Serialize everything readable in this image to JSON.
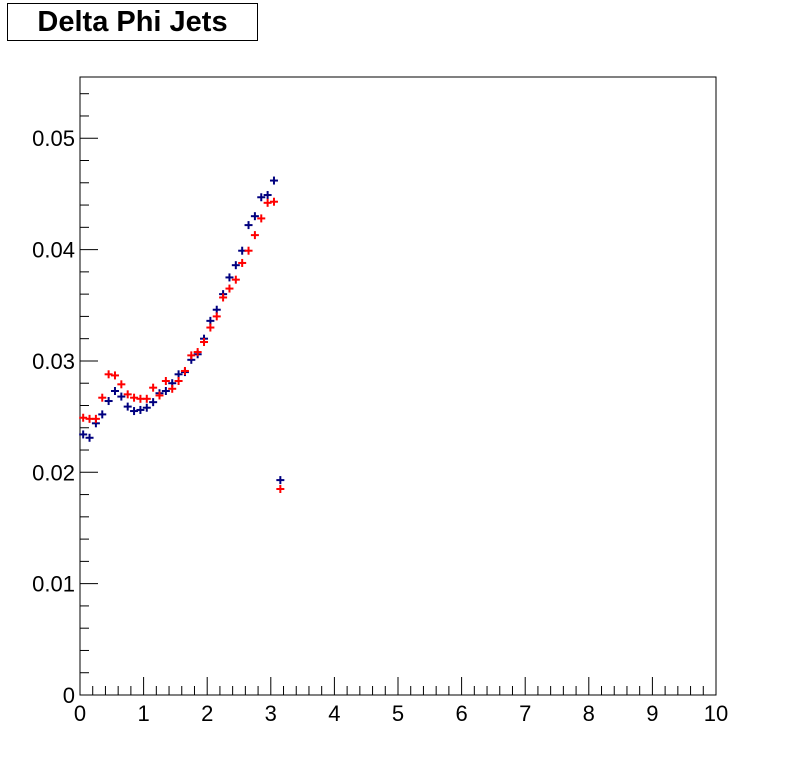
{
  "title": "Delta Phi Jets",
  "chart_data": {
    "type": "scatter",
    "title": "Delta Phi Jets",
    "xlabel": "",
    "ylabel": "",
    "xlim": [
      0,
      10
    ],
    "ylim": [
      0,
      0.0555
    ],
    "x_ticks": [
      0,
      1,
      2,
      3,
      4,
      5,
      6,
      7,
      8,
      9,
      10
    ],
    "y_ticks": [
      0,
      0.01,
      0.02,
      0.03,
      0.04,
      0.05
    ],
    "x_tick_labels": [
      "0",
      "1",
      "2",
      "3",
      "4",
      "5",
      "6",
      "7",
      "8",
      "9",
      "10"
    ],
    "y_tick_labels": [
      "0",
      "0.01",
      "0.02",
      "0.03",
      "0.04",
      "0.05"
    ],
    "grid": false,
    "series": [
      {
        "color": "#00007f",
        "x": [
          0.05,
          0.15,
          0.25,
          0.35,
          0.45,
          0.55,
          0.65,
          0.75,
          0.85,
          0.95,
          1.05,
          1.15,
          1.25,
          1.35,
          1.45,
          1.55,
          1.65,
          1.75,
          1.85,
          1.95,
          2.05,
          2.15,
          2.25,
          2.35,
          2.45,
          2.55,
          2.65,
          2.75,
          2.85,
          2.95,
          3.05,
          3.15
        ],
        "y": [
          0.0234,
          0.0231,
          0.0244,
          0.0252,
          0.0264,
          0.0273,
          0.0268,
          0.0259,
          0.0255,
          0.0256,
          0.0258,
          0.0263,
          0.0271,
          0.0273,
          0.028,
          0.0288,
          0.029,
          0.0301,
          0.0306,
          0.032,
          0.0336,
          0.0346,
          0.036,
          0.0375,
          0.0386,
          0.0399,
          0.0422,
          0.043,
          0.0447,
          0.0449,
          0.0462,
          0.0193
        ]
      },
      {
        "color": "#ff0000",
        "x": [
          0.05,
          0.15,
          0.25,
          0.35,
          0.45,
          0.55,
          0.65,
          0.75,
          0.85,
          0.95,
          1.05,
          1.15,
          1.25,
          1.35,
          1.45,
          1.55,
          1.65,
          1.75,
          1.85,
          1.95,
          2.05,
          2.15,
          2.25,
          2.35,
          2.45,
          2.55,
          2.65,
          2.75,
          2.85,
          2.95,
          3.05,
          3.15
        ],
        "y": [
          0.0249,
          0.0248,
          0.0248,
          0.0267,
          0.0288,
          0.0287,
          0.0279,
          0.027,
          0.0267,
          0.0266,
          0.0266,
          0.0276,
          0.0269,
          0.0282,
          0.0275,
          0.0282,
          0.0291,
          0.0305,
          0.0308,
          0.0317,
          0.033,
          0.034,
          0.0357,
          0.0365,
          0.0373,
          0.0388,
          0.0399,
          0.0413,
          0.0428,
          0.0442,
          0.0443,
          0.0185
        ]
      }
    ]
  }
}
